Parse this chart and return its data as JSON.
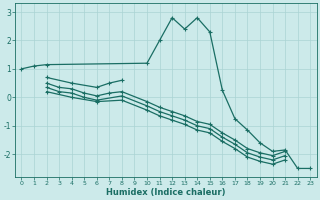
{
  "xlabel": "Humidex (Indice chaleur)",
  "background_color": "#cceaea",
  "grid_color": "#aad4d4",
  "line_color": "#1a6e64",
  "xlim": [
    -0.5,
    23.5
  ],
  "ylim": [
    -2.8,
    3.3
  ],
  "yticks": [
    -2,
    -1,
    0,
    1,
    2,
    3
  ],
  "xticks": [
    0,
    1,
    2,
    3,
    4,
    5,
    6,
    7,
    8,
    9,
    10,
    11,
    12,
    13,
    14,
    15,
    16,
    17,
    18,
    19,
    20,
    21,
    22,
    23
  ],
  "line_main": {
    "x": [
      0,
      1,
      2,
      10,
      11,
      12,
      13,
      14,
      15,
      16,
      17,
      18,
      19,
      20,
      21,
      22,
      23
    ],
    "y": [
      1.0,
      1.1,
      1.15,
      1.2,
      2.0,
      2.8,
      2.4,
      2.8,
      2.3,
      0.25,
      -0.75,
      -1.15,
      -1.6,
      -1.9,
      -1.85,
      -2.5,
      -2.5
    ]
  },
  "line_short_top": {
    "x": [
      2,
      4,
      6,
      7,
      8
    ],
    "y": [
      0.7,
      0.5,
      0.35,
      0.5,
      0.6
    ]
  },
  "line_diag1": {
    "x": [
      2,
      3,
      4,
      5,
      6,
      7,
      8,
      10,
      11,
      12,
      13,
      14,
      15,
      16,
      17,
      18,
      19,
      20,
      21
    ],
    "y": [
      0.5,
      0.35,
      0.3,
      0.15,
      0.05,
      0.15,
      0.2,
      -0.15,
      -0.35,
      -0.5,
      -0.65,
      -0.85,
      -0.95,
      -1.25,
      -1.5,
      -1.8,
      -1.95,
      -2.05,
      -1.9
    ]
  },
  "line_diag2": {
    "x": [
      2,
      3,
      4,
      5,
      6,
      8,
      10,
      11,
      12,
      13,
      14,
      15,
      16,
      17,
      18,
      19,
      20,
      21
    ],
    "y": [
      0.35,
      0.2,
      0.15,
      0.0,
      -0.1,
      0.05,
      -0.3,
      -0.5,
      -0.65,
      -0.8,
      -1.0,
      -1.1,
      -1.4,
      -1.65,
      -1.95,
      -2.1,
      -2.2,
      -2.05
    ]
  },
  "line_diag3": {
    "x": [
      2,
      4,
      6,
      8,
      10,
      11,
      12,
      13,
      14,
      15,
      16,
      17,
      18,
      19,
      20,
      21
    ],
    "y": [
      0.2,
      0.0,
      -0.15,
      -0.1,
      -0.45,
      -0.65,
      -0.8,
      -0.95,
      -1.15,
      -1.25,
      -1.55,
      -1.8,
      -2.1,
      -2.25,
      -2.35,
      -2.2
    ]
  }
}
